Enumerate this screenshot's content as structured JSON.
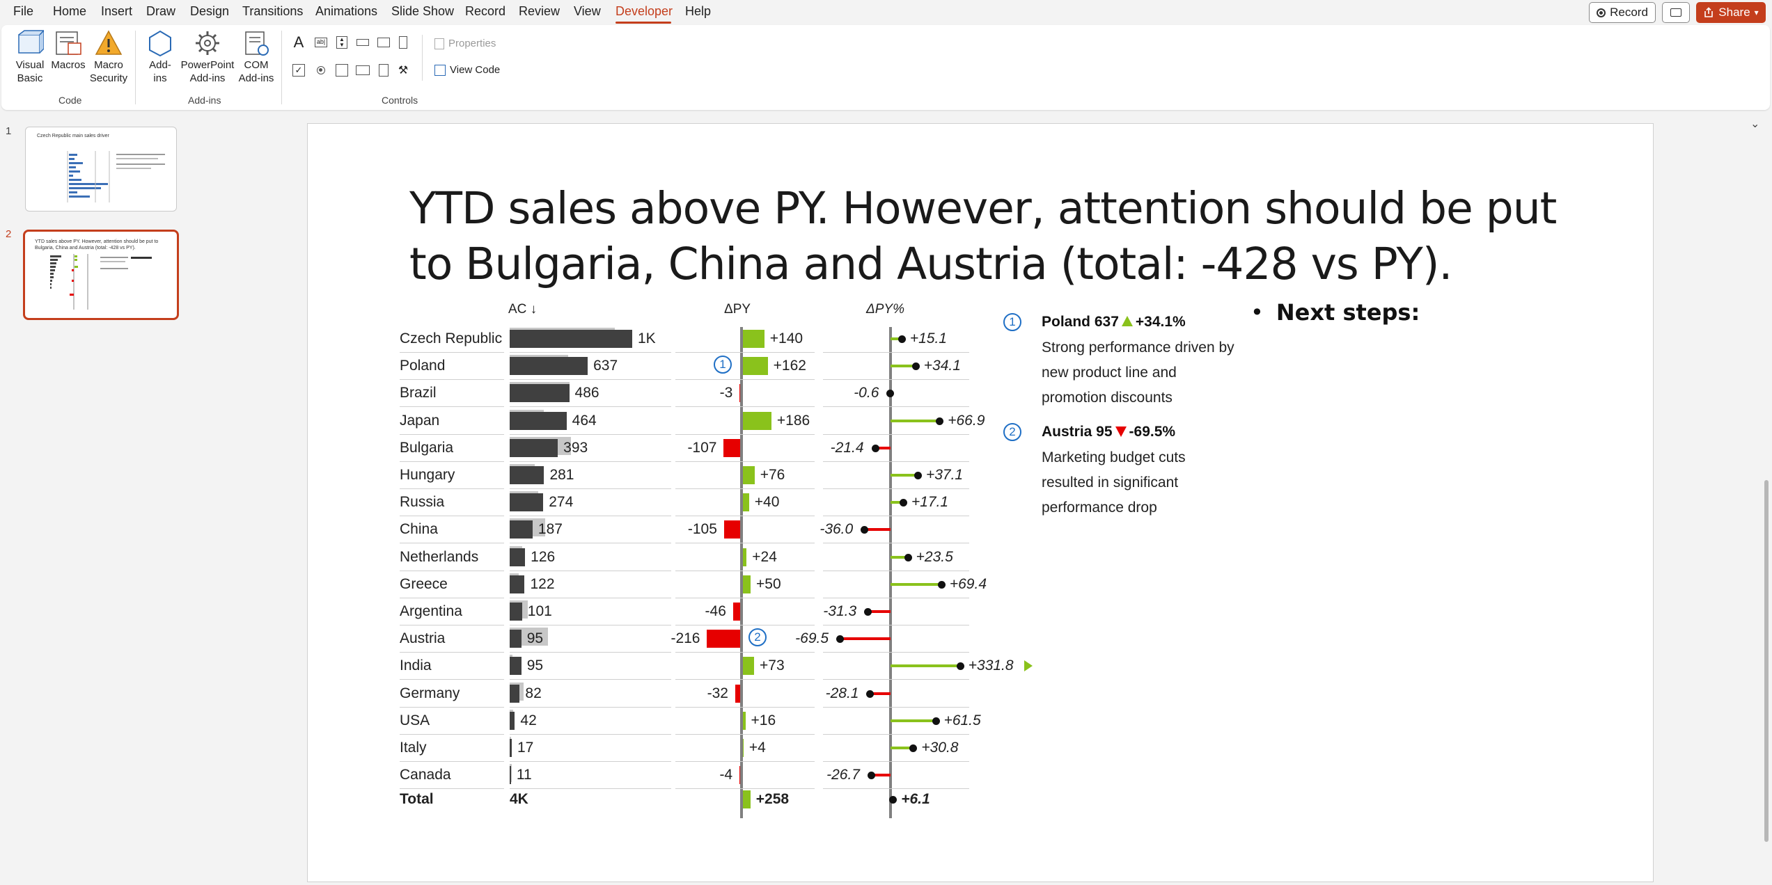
{
  "menu": {
    "tabs": [
      "File",
      "Home",
      "Insert",
      "Draw",
      "Design",
      "Transitions",
      "Animations",
      "Slide Show",
      "Record",
      "Review",
      "View",
      "Developer",
      "Help"
    ],
    "active_tab": "Developer",
    "record_button": "Record",
    "share_button": "Share"
  },
  "ribbon": {
    "code_group": {
      "label": "Code",
      "visual_basic": [
        "Visual",
        "Basic"
      ],
      "macros": "Macros",
      "macro_security": [
        "Macro",
        "Security"
      ]
    },
    "addins_group": {
      "label": "Add-ins",
      "addins": [
        "Add-",
        "ins"
      ],
      "ppt_addins": [
        "PowerPoint",
        "Add-ins"
      ],
      "com_addins": [
        "COM",
        "Add-ins"
      ]
    },
    "controls_group": {
      "label": "Controls",
      "properties": "Properties",
      "view_code": "View Code"
    }
  },
  "thumbnails": [
    {
      "number": "1",
      "title": "Czech Republic main sales driver"
    },
    {
      "number": "2",
      "title": "YTD sales above PY. However, attention should be put to Bulgaria, China and Austria (total: -428 vs PY)."
    }
  ],
  "slide": {
    "title": "YTD sales above PY. However, attention should be put to Bulgaria, China and Austria (total: -428 vs PY).",
    "columns": {
      "ac": "AC ↓",
      "dpy": "ΔPY",
      "dpy_pct": "ΔPY%"
    },
    "next_steps": "Next steps",
    "notes": [
      {
        "marker": "1",
        "head_country": "Poland 637",
        "head_delta": "+34.1%",
        "direction": "up",
        "body": "Strong performance driven by new product line and promotion discounts"
      },
      {
        "marker": "2",
        "head_country": "Austria 95",
        "head_delta": "-69.5%",
        "direction": "down",
        "body": "Marketing budget cuts resulted in significant performance drop"
      }
    ]
  },
  "colors": {
    "positive": "#8ac21c",
    "negative": "#e60000",
    "actual": "#404040",
    "previous": "#c7c7c7",
    "accent": "#c43e1c",
    "marker": "#1f6fc5"
  },
  "chart_data": {
    "type": "bar",
    "title": "YTD sales above PY. However, attention should be put to Bulgaria, China and Austria (total: -428 vs PY).",
    "categories": [
      "Czech Republic",
      "Poland",
      "Brazil",
      "Japan",
      "Bulgaria",
      "Hungary",
      "Russia",
      "China",
      "Netherlands",
      "Greece",
      "Argentina",
      "Austria",
      "India",
      "Germany",
      "USA",
      "Italy",
      "Canada"
    ],
    "series": [
      {
        "name": "AC",
        "values": [
          1000,
          637,
          486,
          464,
          393,
          281,
          274,
          187,
          126,
          122,
          101,
          95,
          95,
          82,
          42,
          17,
          11
        ],
        "labels": [
          "1K",
          "637",
          "486",
          "464",
          "393",
          "281",
          "274",
          "187",
          "126",
          "122",
          "101",
          "95",
          "95",
          "82",
          "42",
          "17",
          "11"
        ]
      },
      {
        "name": "ΔPY",
        "values": [
          140,
          162,
          -3,
          186,
          -107,
          76,
          40,
          -105,
          24,
          50,
          -46,
          -216,
          73,
          -32,
          16,
          4,
          -4
        ],
        "labels": [
          "+140",
          "+162",
          "-3",
          "+186",
          "-107",
          "+76",
          "+40",
          "-105",
          "+24",
          "+50",
          "-46",
          "-216",
          "+73",
          "-32",
          "+16",
          "+4",
          "-4"
        ]
      },
      {
        "name": "ΔPY%",
        "values": [
          15.1,
          34.1,
          -0.6,
          66.9,
          -21.4,
          37.1,
          17.1,
          -36.0,
          23.5,
          69.4,
          -31.3,
          -69.5,
          331.8,
          -28.1,
          61.5,
          30.8,
          -26.7
        ],
        "labels": [
          "+15.1",
          "+34.1",
          "-0.6",
          "+66.9",
          "-21.4",
          "+37.1",
          "+17.1",
          "-36.0",
          "+23.5",
          "+69.4",
          "-31.3",
          "-69.5",
          "+331.8",
          "-28.1",
          "+61.5",
          "+30.8",
          "-26.7"
        ]
      }
    ],
    "total": {
      "label": "Total",
      "ac": "4K",
      "dpy": 258,
      "dpy_label": "+258",
      "dpy_pct": 6.1,
      "dpy_pct_label": "+6.1"
    },
    "markers": [
      {
        "category": "Poland",
        "number": "1"
      },
      {
        "category": "Austria",
        "number": "2"
      }
    ]
  }
}
